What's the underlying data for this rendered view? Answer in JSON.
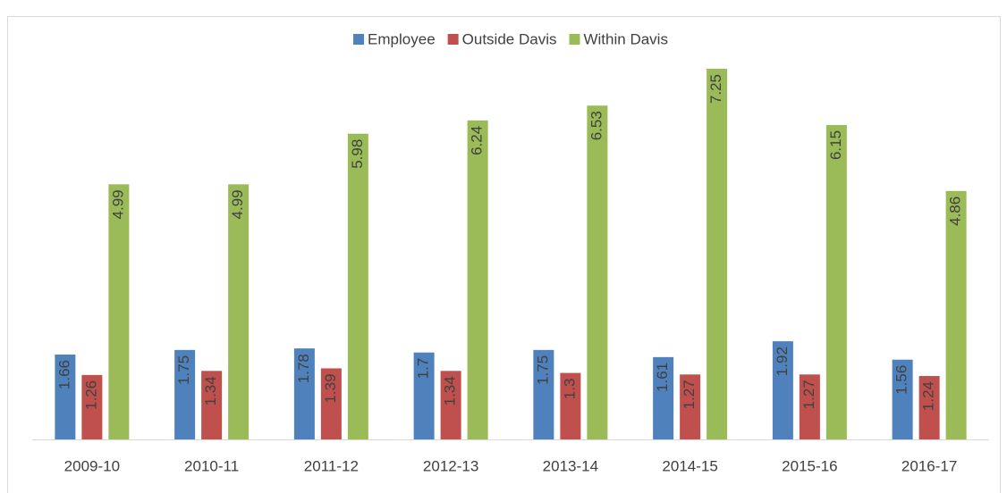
{
  "chart_data": {
    "type": "bar",
    "categories": [
      "2009-10",
      "2010-11",
      "2011-12",
      "2012-13",
      "2013-14",
      "2014-15",
      "2015-16",
      "2016-17"
    ],
    "series": [
      {
        "name": "Employee",
        "color": "#4f81bd",
        "values": [
          1.66,
          1.75,
          1.78,
          1.7,
          1.75,
          1.61,
          1.92,
          1.56
        ]
      },
      {
        "name": "Outside Davis",
        "color": "#c0504d",
        "values": [
          1.26,
          1.34,
          1.39,
          1.34,
          1.3,
          1.27,
          1.27,
          1.24
        ]
      },
      {
        "name": "Within Davis",
        "color": "#9bbb59",
        "values": [
          4.99,
          4.99,
          5.98,
          6.24,
          6.53,
          7.25,
          6.15,
          4.86
        ]
      }
    ],
    "legend": "top"
  }
}
